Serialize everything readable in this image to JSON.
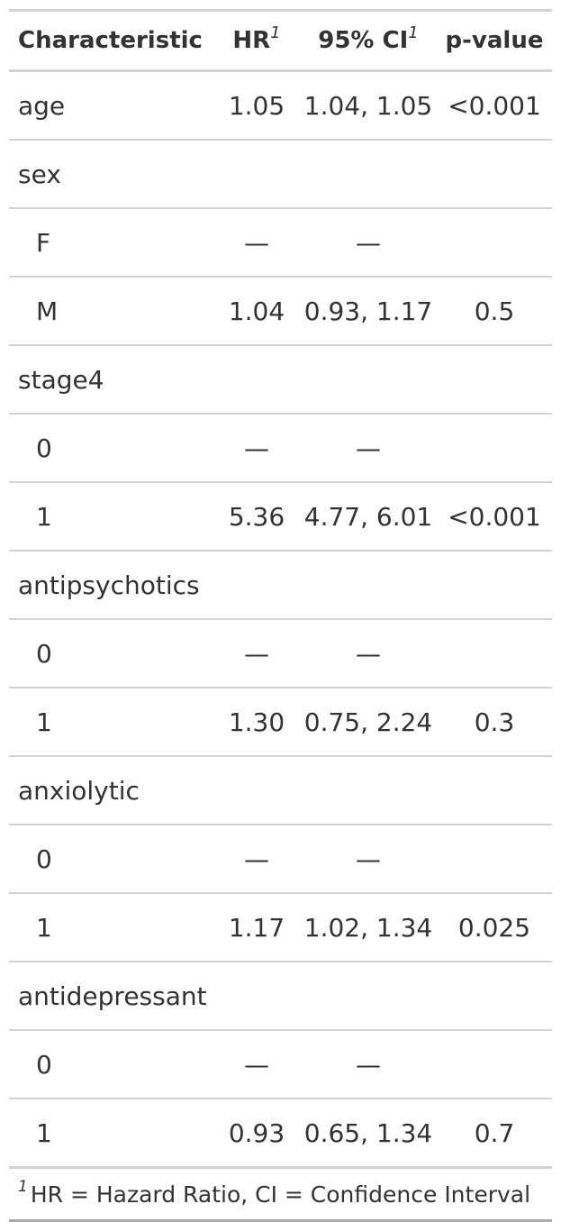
{
  "header": {
    "characteristic": "Characteristic",
    "hr": "HR",
    "ci": "95% CI",
    "pvalue": "p-value",
    "footnote_mark": "1"
  },
  "rows": [
    {
      "label": "age",
      "hr": "1.05",
      "ci": "1.04, 1.05",
      "p": "<0.001"
    },
    {
      "label": "sex",
      "hr": "",
      "ci": "",
      "p": ""
    },
    {
      "label": "F",
      "hr": "—",
      "ci": "—",
      "p": ""
    },
    {
      "label": "M",
      "hr": "1.04",
      "ci": "0.93, 1.17",
      "p": "0.5"
    },
    {
      "label": "stage4",
      "hr": "",
      "ci": "",
      "p": ""
    },
    {
      "label": "0",
      "hr": "—",
      "ci": "—",
      "p": ""
    },
    {
      "label": "1",
      "hr": "5.36",
      "ci": "4.77, 6.01",
      "p": "<0.001"
    },
    {
      "label": "antipsychotics",
      "hr": "",
      "ci": "",
      "p": ""
    },
    {
      "label": "0",
      "hr": "—",
      "ci": "—",
      "p": ""
    },
    {
      "label": "1",
      "hr": "1.30",
      "ci": "0.75, 2.24",
      "p": "0.3"
    },
    {
      "label": "anxiolytic",
      "hr": "",
      "ci": "",
      "p": ""
    },
    {
      "label": "0",
      "hr": "—",
      "ci": "—",
      "p": ""
    },
    {
      "label": "1",
      "hr": "1.17",
      "ci": "1.02, 1.34",
      "p": "0.025"
    },
    {
      "label": "antidepressant",
      "hr": "",
      "ci": "",
      "p": ""
    },
    {
      "label": "0",
      "hr": "—",
      "ci": "—",
      "p": ""
    },
    {
      "label": "1",
      "hr": "0.93",
      "ci": "0.65, 1.34",
      "p": "0.7"
    }
  ],
  "footnote": {
    "mark": "1",
    "text": "HR = Hazard Ratio, CI = Confidence Interval"
  }
}
